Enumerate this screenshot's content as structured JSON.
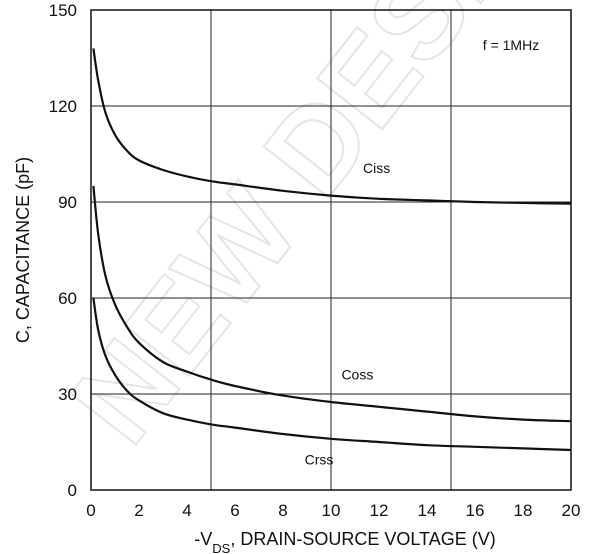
{
  "chart_data": {
    "type": "line",
    "xlabel_prefix": "-V",
    "xlabel_subscript": "DS",
    "xlabel_suffix": ", DRAIN-SOURCE VOLTAGE (V)",
    "ylabel": "C, CAPACITANCE (pF)",
    "xlim": [
      0,
      20
    ],
    "ylim": [
      0,
      150
    ],
    "x_ticks": [
      "0",
      "2",
      "4",
      "6",
      "8",
      "10",
      "12",
      "14",
      "16",
      "18",
      "20"
    ],
    "y_ticks": [
      "0",
      "30",
      "60",
      "90",
      "120",
      "150"
    ],
    "grid": true,
    "annotation": "f = 1MHz",
    "series": [
      {
        "name": "Ciss",
        "x": [
          0.1,
          0.3,
          0.6,
          1,
          1.5,
          2,
          3,
          4,
          5,
          6,
          8,
          10,
          12,
          14,
          16,
          18,
          20
        ],
        "y": [
          138,
          128,
          118,
          111,
          106,
          103,
          100,
          98,
          96.5,
          95.5,
          93.5,
          92,
          91,
          90.5,
          90,
          89.7,
          89.5
        ]
      },
      {
        "name": "Coss",
        "x": [
          0.1,
          0.3,
          0.6,
          1,
          1.5,
          2,
          3,
          4,
          5,
          6,
          8,
          10,
          12,
          14,
          16,
          18,
          20
        ],
        "y": [
          95,
          80,
          67,
          58,
          51,
          46,
          40,
          37,
          34.5,
          32.5,
          29.5,
          27.5,
          26,
          24.5,
          23,
          22,
          21.5
        ]
      },
      {
        "name": "Crss",
        "x": [
          0.1,
          0.3,
          0.6,
          1,
          1.5,
          2,
          3,
          4,
          5,
          6,
          8,
          10,
          12,
          14,
          16,
          18,
          20
        ],
        "y": [
          60,
          50,
          42,
          36,
          31,
          28,
          24,
          22,
          20.5,
          19.5,
          17.5,
          16,
          15,
          14,
          13.5,
          13,
          12.5
        ]
      }
    ]
  },
  "watermark": "NEW DESIGN",
  "colors": {
    "line": "#111111",
    "grid": "#222222",
    "watermark": "#d0d0d0"
  }
}
